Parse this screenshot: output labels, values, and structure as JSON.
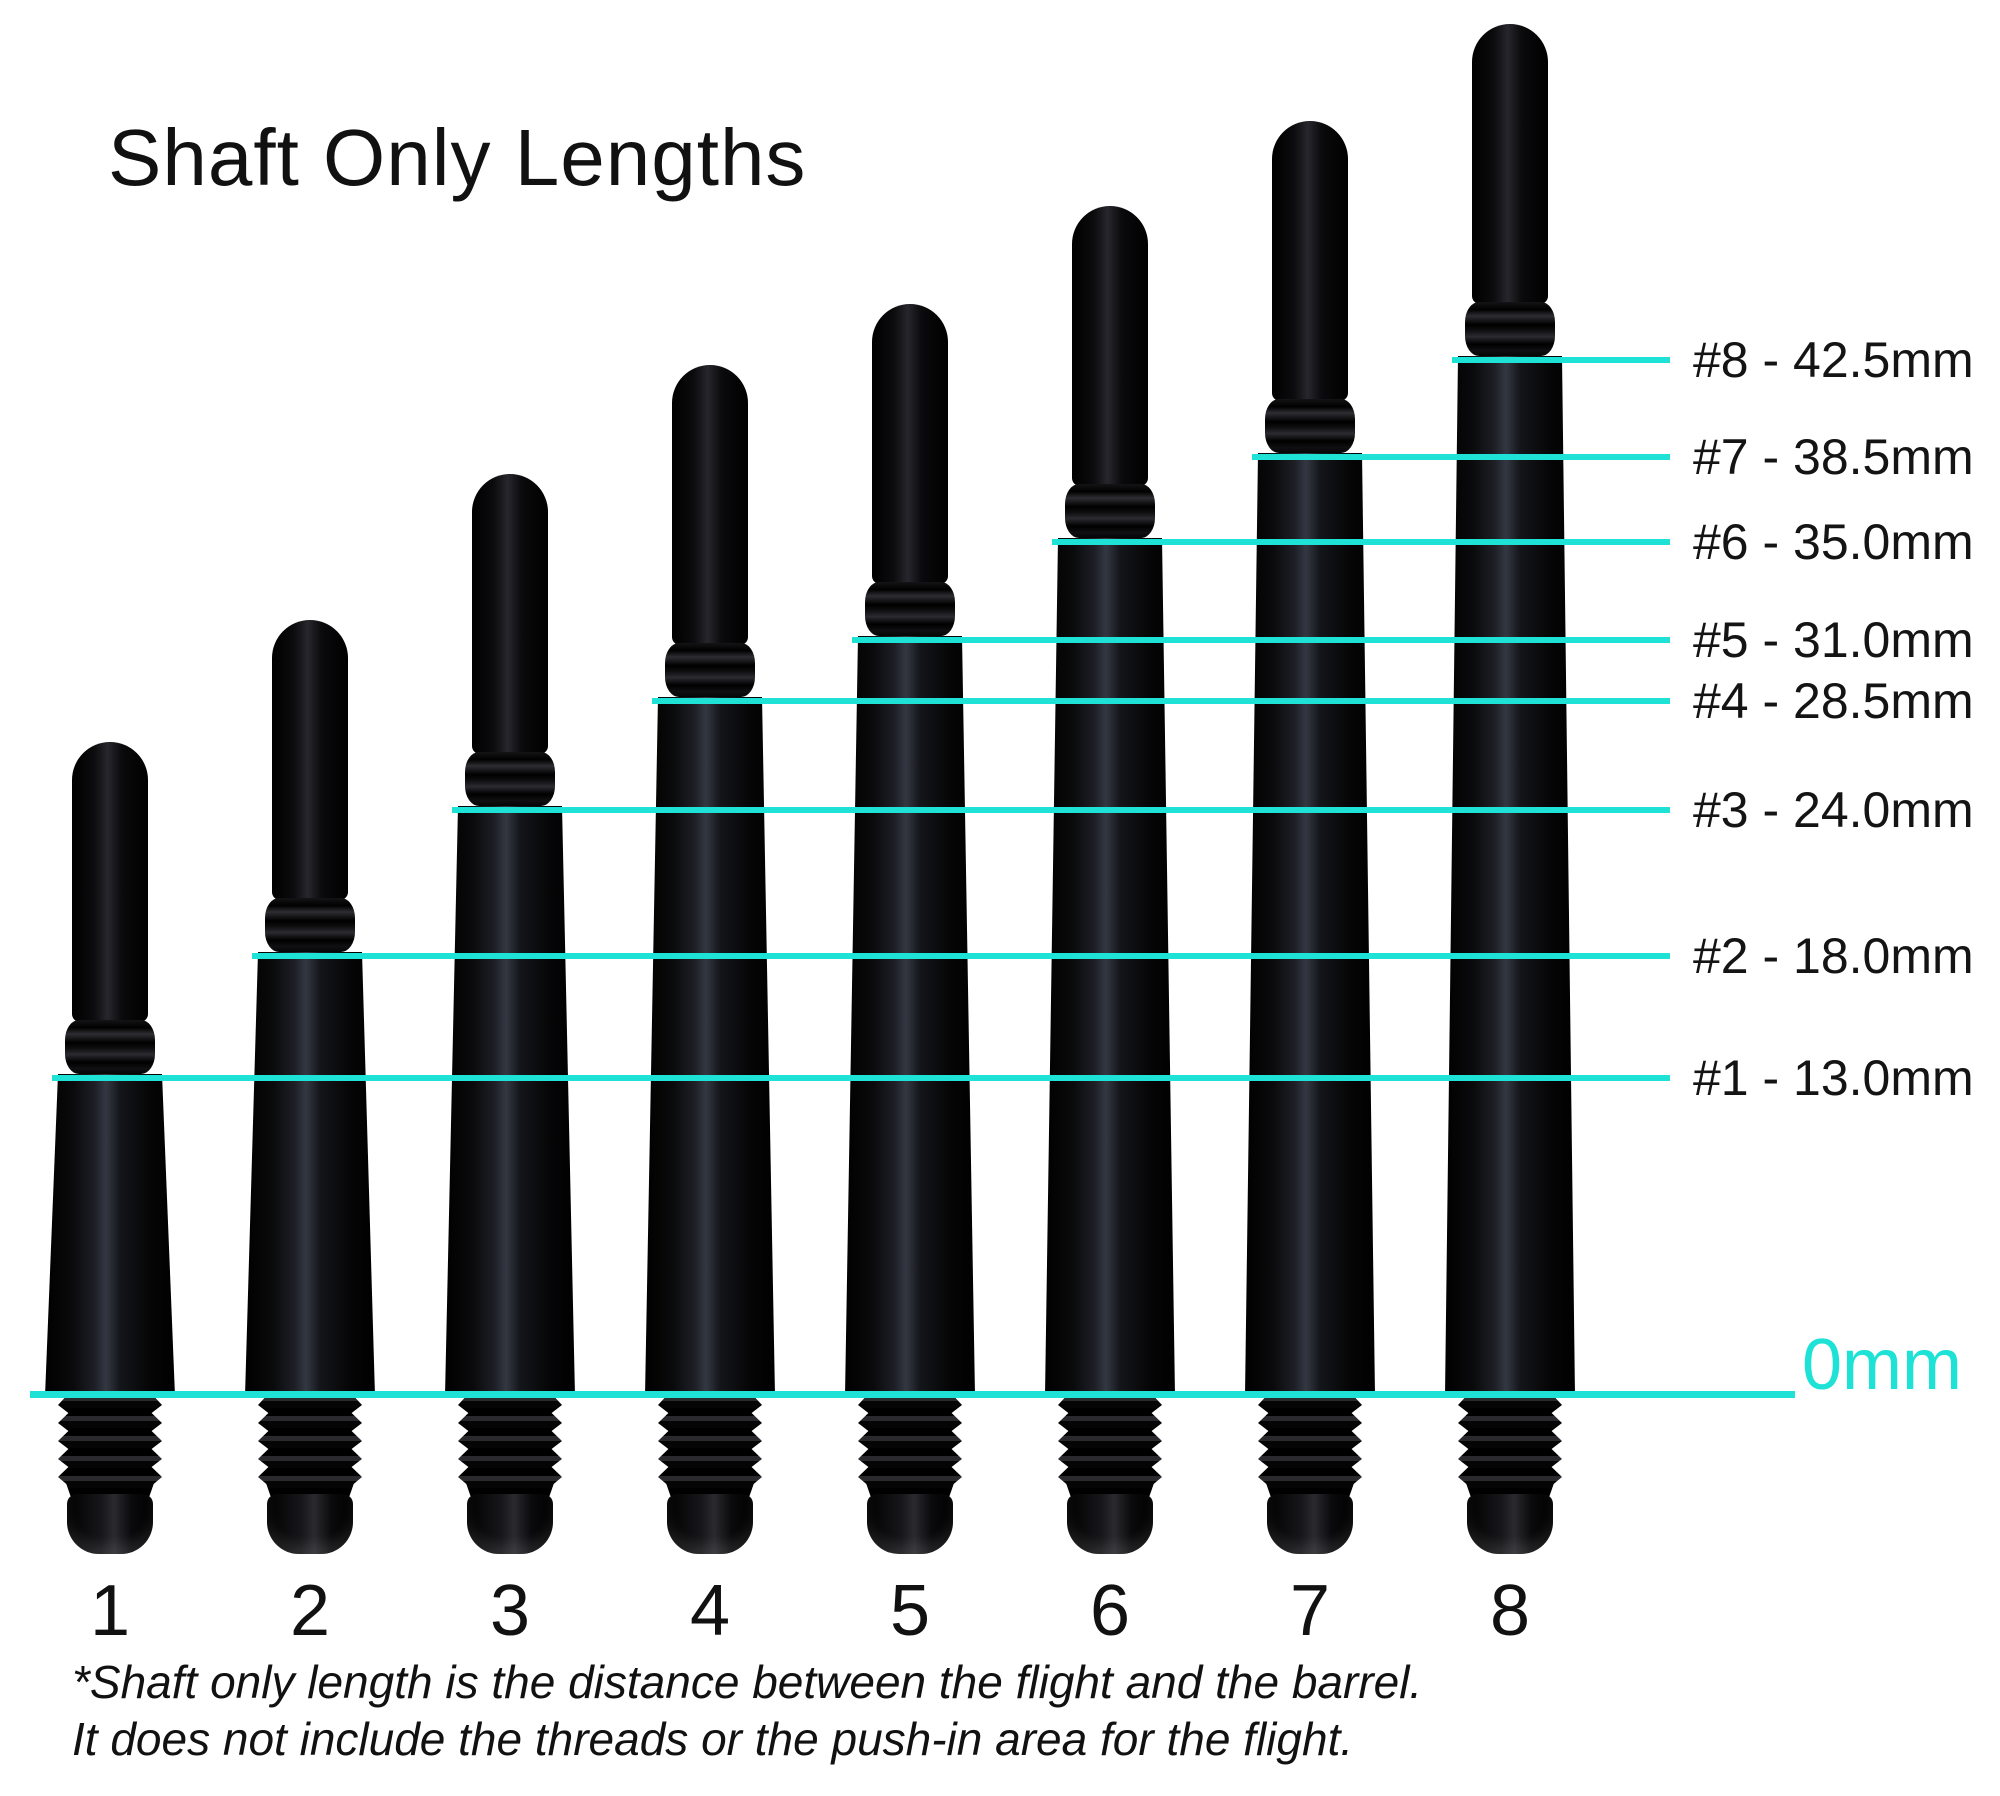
{
  "title": "Shaft Only Lengths",
  "colors": {
    "accent": "#1de2d5",
    "text": "#111111",
    "shaft_black": "#0a0a0c",
    "background": "#ffffff"
  },
  "baseline": {
    "label": "0mm"
  },
  "footnote": {
    "line1": "*Shaft only length is the distance between the flight and the barrel.",
    "line2": "It does not include the threads or the push-in area for the flight."
  },
  "chart_data": {
    "type": "bar",
    "title": "Shaft Only Lengths",
    "categories": [
      "1",
      "2",
      "3",
      "4",
      "5",
      "6",
      "7",
      "8"
    ],
    "values": [
      13.0,
      18.0,
      24.0,
      28.5,
      31.0,
      35.0,
      38.5,
      42.5
    ],
    "unit": "mm",
    "point_labels": [
      "#1 - 13.0mm",
      "#2 - 18.0mm",
      "#3 - 24.0mm",
      "#4 - 28.5mm",
      "#5 - 31.0mm",
      "#6 - 35.0mm",
      "#7 - 38.5mm",
      "#8 - 42.5mm"
    ],
    "baseline_label": "0mm",
    "xlabel": "",
    "ylabel": "",
    "ylim": [
      0,
      45
    ],
    "grid": false,
    "legend_position": "none"
  }
}
